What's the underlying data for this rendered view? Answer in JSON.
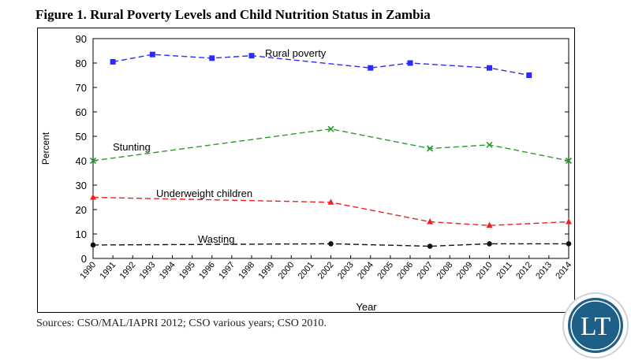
{
  "figure": {
    "title": "Figure 1. Rural Poverty Levels and Child Nutrition Status in Zambia",
    "sources": "Sources: CSO/MAL/IAPRI 2012; CSO various years; CSO 2010."
  },
  "logo": {
    "text": "LT",
    "color": "#1d5f87"
  },
  "chart_data": {
    "type": "line",
    "xlabel": "Year",
    "ylabel": "Percent",
    "ylim": [
      0,
      90
    ],
    "yticks": [
      0,
      10,
      20,
      30,
      40,
      50,
      60,
      70,
      80,
      90
    ],
    "xticks": [
      "1990",
      "1991",
      "1992",
      "1993",
      "1994",
      "1995",
      "1996",
      "1997",
      "1998",
      "1999",
      "2000",
      "2001",
      "2002",
      "2003",
      "2004",
      "2005",
      "2006",
      "2007",
      "2008",
      "2009",
      "2010",
      "2011",
      "2012",
      "2013",
      "2014"
    ],
    "grid": false,
    "series": [
      {
        "name": "Rural poverty",
        "color": "#2a2aff",
        "marker": "square",
        "x": [
          1991,
          1993,
          1996,
          1998,
          2004,
          2006,
          2010,
          2012
        ],
        "y": [
          80.5,
          83.5,
          82,
          83,
          78,
          80,
          78,
          75
        ]
      },
      {
        "name": "Stunting",
        "color": "#2e9a2e",
        "marker": "x",
        "x": [
          1990,
          2002,
          2007,
          2010,
          2014
        ],
        "y": [
          40,
          53,
          45,
          46.5,
          40
        ]
      },
      {
        "name": "Underweight children",
        "color": "#ee2222",
        "marker": "triangle",
        "x": [
          1990,
          2002,
          2007,
          2010,
          2014
        ],
        "y": [
          25,
          23,
          15,
          13.5,
          15
        ]
      },
      {
        "name": "Wasting",
        "color": "#111111",
        "marker": "circle",
        "x": [
          1990,
          2002,
          2007,
          2010,
          2014
        ],
        "y": [
          5.5,
          6,
          5,
          6,
          6
        ]
      }
    ]
  }
}
